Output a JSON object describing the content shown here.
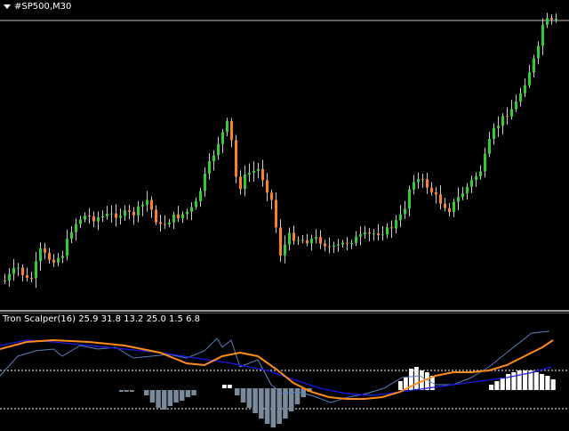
{
  "chart": {
    "symbol_label": "#SP500,M30",
    "colors": {
      "bull": "#32cd32",
      "bear": "#ff7f27",
      "wick": "#cccccc",
      "background": "#000000",
      "level_line": "#c0c0c0"
    }
  },
  "indicator": {
    "title": "Tron Scalper(16) 25.9 31.8 13.2 25.0 1.5 6.8",
    "colors": {
      "fast_line": "#5b7fbf",
      "orange_line": "#ff8c1a",
      "blue_line": "#1a1ae6",
      "hist_pos": "#ffffff",
      "hist_neg": "#7a8a9a",
      "level": "#ffffff"
    }
  }
}
